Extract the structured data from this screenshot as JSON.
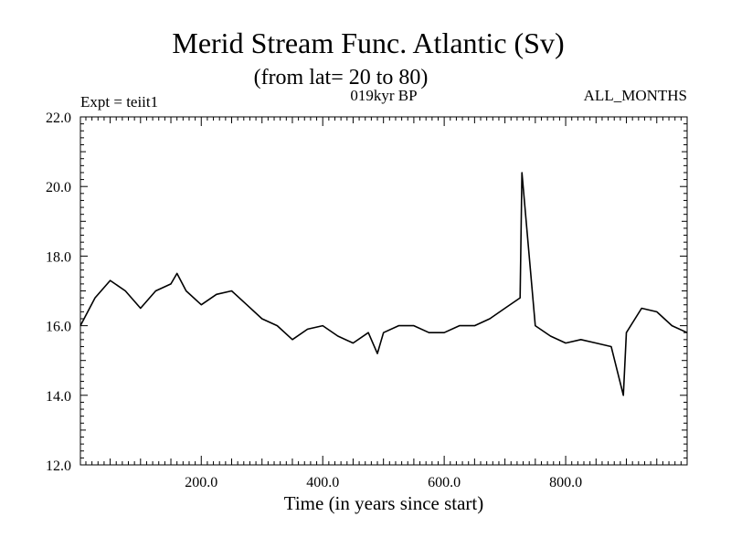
{
  "chart_data": {
    "type": "line",
    "title": "Merid Stream Func. Atlantic (Sv)",
    "subtitle": "(from lat= 20 to 80)",
    "annotations": {
      "left": "Expt = teiit1",
      "center": "019kyr BP",
      "right": "ALL_MONTHS"
    },
    "xlabel": "Time (in years since start)",
    "ylabel": "",
    "xlim": [
      1,
      1000
    ],
    "ylim": [
      12.0,
      22.0
    ],
    "xticks": [
      200,
      400,
      600,
      800
    ],
    "xtick_labels": [
      "200.0",
      "400.0",
      "600.0",
      "800.0"
    ],
    "yticks": [
      12,
      14,
      16,
      18,
      20,
      22
    ],
    "ytick_labels": [
      "12.0",
      "14.0",
      "16.0",
      "18.0",
      "20.0",
      "22.0"
    ],
    "grid": false,
    "series": [
      {
        "x": [
          1,
          25,
          50,
          75,
          100,
          125,
          150,
          160,
          175,
          200,
          225,
          250,
          275,
          300,
          325,
          350,
          375,
          400,
          425,
          450,
          475,
          490,
          500,
          525,
          550,
          575,
          600,
          625,
          650,
          675,
          700,
          725,
          728,
          750,
          775,
          800,
          825,
          850,
          875,
          895,
          900,
          925,
          950,
          975,
          1000
        ],
        "values": [
          16.0,
          16.8,
          17.3,
          17.0,
          16.5,
          17.0,
          17.2,
          17.5,
          17.0,
          16.6,
          16.9,
          17.0,
          16.6,
          16.2,
          16.0,
          15.6,
          15.9,
          16.0,
          15.7,
          15.5,
          15.8,
          15.2,
          15.8,
          16.0,
          16.0,
          15.8,
          15.8,
          16.0,
          16.0,
          16.2,
          16.5,
          16.8,
          20.4,
          16.0,
          15.7,
          15.5,
          15.6,
          15.5,
          15.4,
          14.0,
          15.8,
          16.5,
          16.4,
          16.0,
          15.8
        ],
        "color": "#000000"
      }
    ]
  }
}
